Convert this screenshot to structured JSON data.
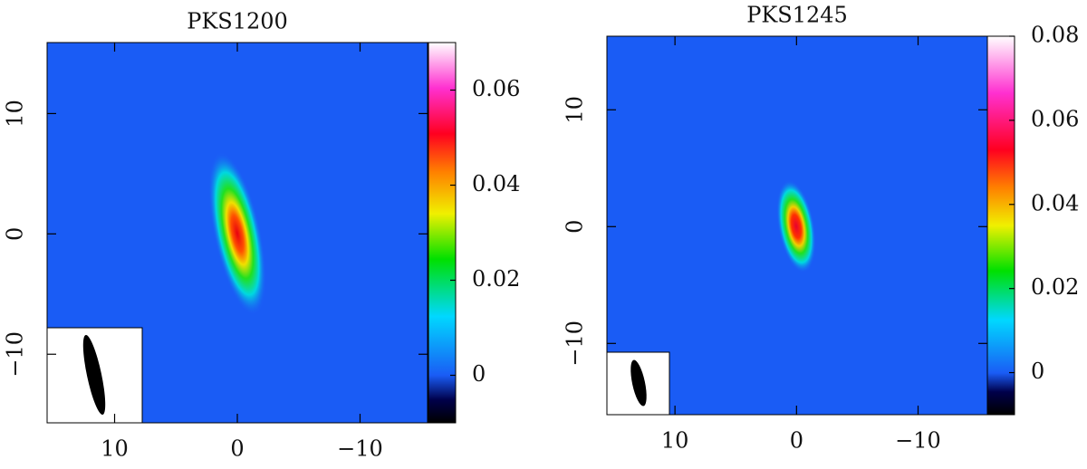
{
  "chart_data": [
    {
      "type": "image",
      "title": "PKS1200",
      "xlim": [
        15.5,
        -15.5
      ],
      "xticks": [
        10,
        0,
        {
          "value": -10,
          "label": "−10"
        }
      ],
      "ylim": [
        -15.7,
        15.9
      ],
      "yticks": [
        {
          "value": -10,
          "label": "−10"
        },
        0,
        10
      ],
      "clim": [
        -0.01,
        0.07
      ],
      "cticks": [
        0,
        0.02,
        0.04,
        0.06
      ]
    },
    {
      "type": "image",
      "title": "PKS1245",
      "xlim": [
        15.6,
        -15.7
      ],
      "xticks": [
        10,
        0,
        {
          "value": -10,
          "label": "−10"
        }
      ],
      "ylim": [
        -16.1,
        16.3
      ],
      "yticks": [
        {
          "value": -10,
          "label": "−10"
        },
        0,
        10
      ],
      "clim": [
        -0.01,
        0.08
      ],
      "cticks": [
        0,
        0.02,
        0.04,
        0.06,
        0.08
      ]
    }
  ]
}
